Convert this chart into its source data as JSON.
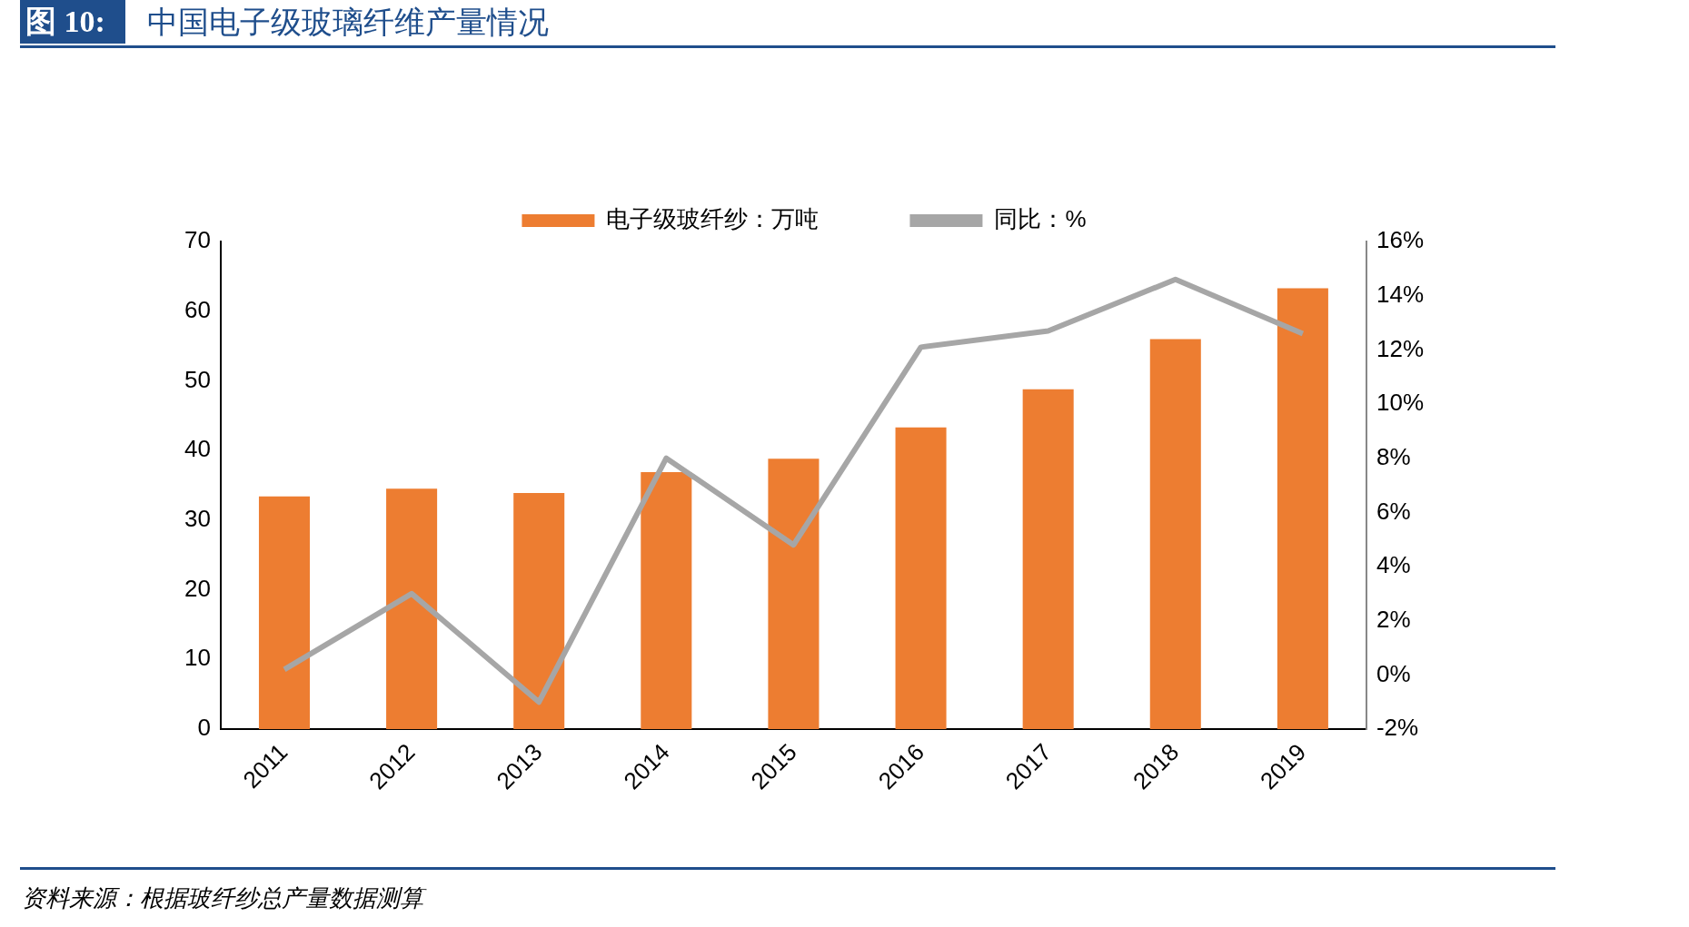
{
  "chart_data": {
    "type": "bar",
    "title": "图 10:",
    "subtitle": "中国电子级玻璃纤维产量情况",
    "categories": [
      "2011",
      "2012",
      "2013",
      "2014",
      "2015",
      "2016",
      "2017",
      "2018",
      "2019"
    ],
    "series": [
      {
        "name": "电子级玻纤纱：万吨",
        "color": "#ed7d31",
        "values": [
          33.4,
          34.5,
          33.9,
          36.9,
          38.8,
          43.3,
          48.8,
          56.0,
          63.3
        ]
      },
      {
        "name": "同比：%",
        "color": "#a6a6a6",
        "type": "line",
        "axis": "y2",
        "values": [
          0.2,
          3.0,
          -1.0,
          8.0,
          4.8,
          12.1,
          12.7,
          14.6,
          12.6
        ]
      }
    ],
    "ylim": [
      0,
      70
    ],
    "yticks": [
      0,
      10,
      20,
      30,
      40,
      50,
      60,
      70
    ],
    "y2lim": [
      -2,
      16
    ],
    "y2ticks": [
      {
        "value": -2,
        "label": "-2%"
      },
      {
        "value": 0,
        "label": "0%"
      },
      {
        "value": 2,
        "label": "2%"
      },
      {
        "value": 4,
        "label": "4%"
      },
      {
        "value": 6,
        "label": "6%"
      },
      {
        "value": 8,
        "label": "8%"
      },
      {
        "value": 10,
        "label": "10%"
      },
      {
        "value": 12,
        "label": "12%"
      },
      {
        "value": 14,
        "label": "14%"
      },
      {
        "value": 16,
        "label": "16%"
      }
    ],
    "grid": false,
    "legend": "top",
    "marker": "none",
    "line_style": "solid",
    "annotations": [
      "资料来源：根据玻纤纱总产量数据测算"
    ]
  }
}
